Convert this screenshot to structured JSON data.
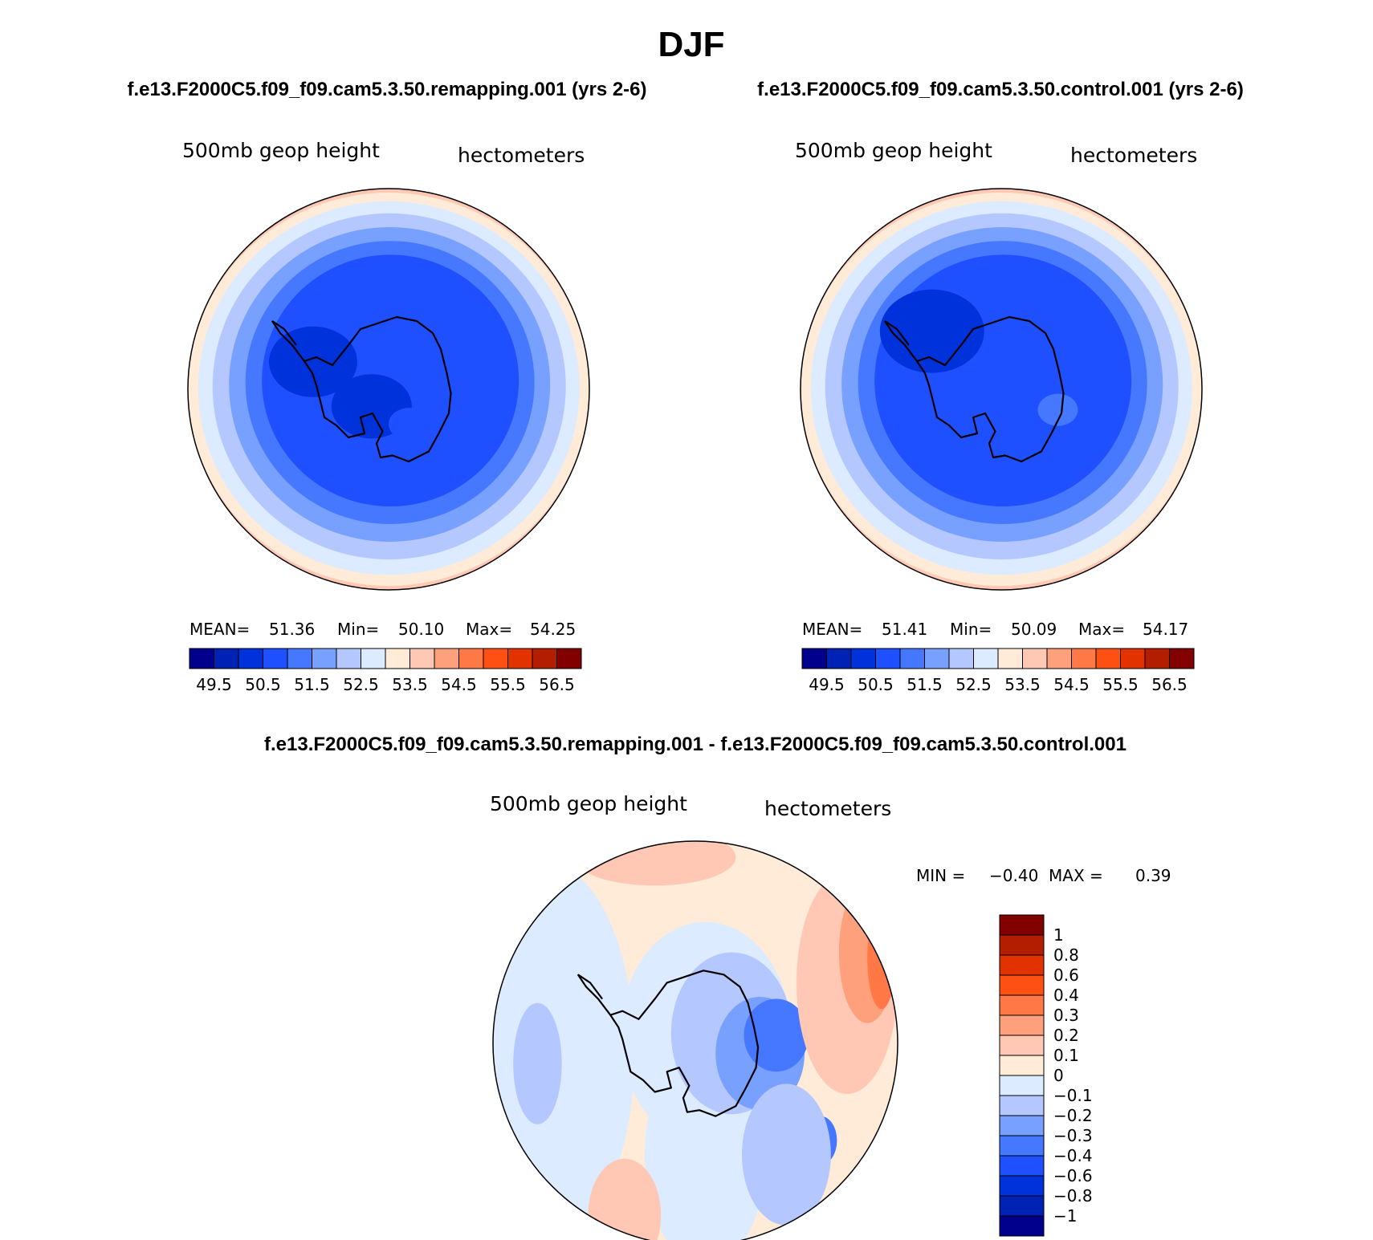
{
  "page": {
    "title": "DJF",
    "left_heading": "f.e13.F2000C5.f09_f09.cam5.3.50.remapping.001 (yrs 2-6)",
    "right_heading": "f.e13.F2000C5.f09_f09.cam5.3.50.control.001 (yrs 2-6)",
    "diff_heading": "f.e13.F2000C5.f09_f09.cam5.3.50.remapping.001 - f.e13.F2000C5.f09_f09.cam5.3.50.control.001"
  },
  "colors": {
    "coast": "#000000",
    "abs_palette": [
      "#00008c",
      "#0022b4",
      "#0032dc",
      "#1e50ff",
      "#4678ff",
      "#78a0ff",
      "#b4c8ff",
      "#dcebff",
      "#ffebd7",
      "#ffc8b4",
      "#ffa07d",
      "#ff7846",
      "#ff5014",
      "#e13200",
      "#b41e00",
      "#820000"
    ],
    "diff_palette": [
      "#00008c",
      "#0022b4",
      "#0032dc",
      "#1e50ff",
      "#4678ff",
      "#78a0ff",
      "#b4c8ff",
      "#dcebff",
      "#ffebd7",
      "#ffc8b4",
      "#ffa07d",
      "#ff7846",
      "#ff5014",
      "#e13200",
      "#b41e00",
      "#820000"
    ]
  },
  "chart_data": [
    {
      "type": "heatmap",
      "id": "remapping",
      "projection": "south-polar stereographic",
      "title": "f.e13.F2000C5.f09_f09.cam5.3.50.remapping.001 (yrs 2-6)",
      "field_label": "500mb geop height",
      "units": "hectometers",
      "stats": {
        "mean_label": "MEAN=",
        "mean": "51.36",
        "min_label": "Min=",
        "min": "50.10",
        "max_label": "Max=",
        "max": "54.25"
      },
      "colorbar": {
        "orientation": "horizontal",
        "labels": [
          "49.5",
          "50.5",
          "51.5",
          "52.5",
          "53.5",
          "54.5",
          "55.5",
          "56.5"
        ]
      },
      "levels": [
        {
          "rel_r": 1.0,
          "color_index": 8
        },
        {
          "rel_r": 0.95,
          "color_index": 7
        },
        {
          "rel_r": 0.88,
          "color_index": 6
        },
        {
          "rel_r": 0.8,
          "color_index": 5
        },
        {
          "rel_r": 0.72,
          "color_index": 4
        },
        {
          "rel_r": 0.64,
          "color_index": 3
        }
      ],
      "minimum_centers": [
        {
          "lon_deg": 135,
          "colat_frac": 0.12,
          "size_frac": 0.2,
          "color_index": 2
        },
        {
          "lon_deg": 200,
          "colat_frac": 0.4,
          "size_frac": 0.22,
          "color_index": 2
        },
        {
          "lon_deg": 60,
          "colat_frac": 0.2,
          "size_frac": 0.1,
          "color_index": 3
        }
      ]
    },
    {
      "type": "heatmap",
      "id": "control",
      "projection": "south-polar stereographic",
      "title": "f.e13.F2000C5.f09_f09.cam5.3.50.control.001 (yrs 2-6)",
      "field_label": "500mb geop height",
      "units": "hectometers",
      "stats": {
        "mean_label": "MEAN=",
        "mean": "51.41",
        "min_label": "Min=",
        "min": "50.09",
        "max_label": "Max=",
        "max": "54.17"
      },
      "colorbar": {
        "orientation": "horizontal",
        "labels": [
          "49.5",
          "50.5",
          "51.5",
          "52.5",
          "53.5",
          "54.5",
          "55.5",
          "56.5"
        ]
      },
      "levels": [
        {
          "rel_r": 1.0,
          "color_index": 8
        },
        {
          "rel_r": 0.95,
          "color_index": 7
        },
        {
          "rel_r": 0.88,
          "color_index": 6
        },
        {
          "rel_r": 0.8,
          "color_index": 5
        },
        {
          "rel_r": 0.72,
          "color_index": 4
        },
        {
          "rel_r": 0.64,
          "color_index": 3
        }
      ],
      "minimum_centers": [
        {
          "lon_deg": 220,
          "colat_frac": 0.45,
          "size_frac": 0.26,
          "color_index": 2
        },
        {
          "lon_deg": 20,
          "colat_frac": 0.3,
          "size_frac": 0.1,
          "color_index": 4
        }
      ]
    },
    {
      "type": "heatmap",
      "id": "difference",
      "projection": "south-polar stereographic",
      "title": "f.e13.F2000C5.f09_f09.cam5.3.50.remapping.001 - f.e13.F2000C5.f09_f09.cam5.3.50.control.001",
      "field_label": "500mb geop height",
      "units": "hectometers",
      "stats": {
        "min_label": "MIN =",
        "min": "−0.40",
        "max_label": "MAX =",
        "max": "0.39"
      },
      "colorbar": {
        "orientation": "vertical",
        "labels": [
          "1",
          "0.8",
          "0.6",
          "0.4",
          "0.3",
          "0.2",
          "0.1",
          "0",
          "−0.1",
          "−0.2",
          "−0.3",
          "−0.4",
          "−0.6",
          "−0.8",
          "−1"
        ]
      }
    }
  ]
}
